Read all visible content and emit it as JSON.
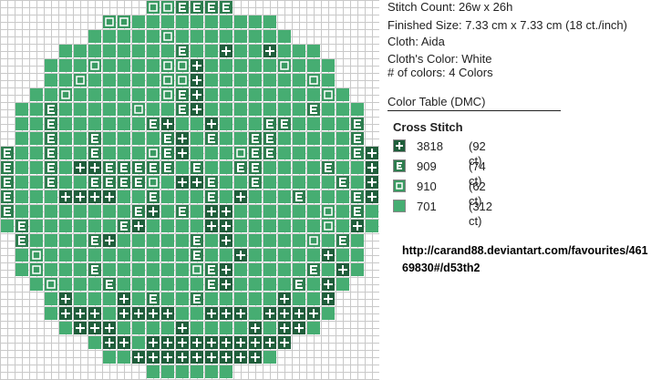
{
  "info": {
    "stitch_count": "Stitch Count: 26w x 26h",
    "finished_size": "Finished Size: 7.33 cm x 7.33 cm (18  ct./inch)",
    "cloth": "Cloth: Aida",
    "cloth_color": "Cloth's Color: White",
    "num_colors": "# of colors: 4 Colors"
  },
  "color_table": {
    "title": "Color Table (DMC)",
    "section": "Cross Stitch",
    "rows": [
      {
        "symbol": "plus",
        "code": "3818",
        "count": "(92 ct)",
        "color": "#1f5e3b"
      },
      {
        "symbol": "E",
        "code": "909",
        "count": "(74 ct)",
        "color": "#2e7d4f"
      },
      {
        "symbol": "square",
        "code": "910",
        "count": "(62 ct)",
        "color": "#3a9a62"
      },
      {
        "symbol": "blank",
        "code": "701",
        "count": "(312 ct)",
        "color": "#46ad72"
      }
    ]
  },
  "link": "http://carand88.deviantart.com/favourites/46169830#/d53th2",
  "pattern": {
    "size": 26,
    "rows": [
      "         ===EEEEEE        ",
      "      ===           EE    ",
      "    ==     =         EE   ",
      "   =        E  +  +    E  ",
      "  =   =    ==+     =   E  ",
      " =   =     ==+       =  = ",
      " =  =      =E+        =  =",
      "=  E     =  E+       E   +",
      "=  E      E+  +   EE    E+",
      "E  E  E    E+ E  EE     E+",
      "E  E  E   =E+   =EE     E+",
      "E  E ++EEEEE E  EE    E  +",
      "E  E  EEEE= ++E  E     E +",
      "E   ++++  E   E +   E   E+",
      "E        E+ E ++      = E ",
      " E      E+    ++      = + ",
      " E    E+     E +     = E  ",
      "  =          E  +     +   ",
      "  =   E      =E+     E +  ",
      "   =   E      E+    E +   ",
      "    +   + E  E     +  +   ",
      "    +++ ++++  +++ ++++    ",
      "     +++    +    + ++     ",
      "       ++ ++++++++++       ",
      "         +++++++++         ",
      "                          "
    ]
  }
}
